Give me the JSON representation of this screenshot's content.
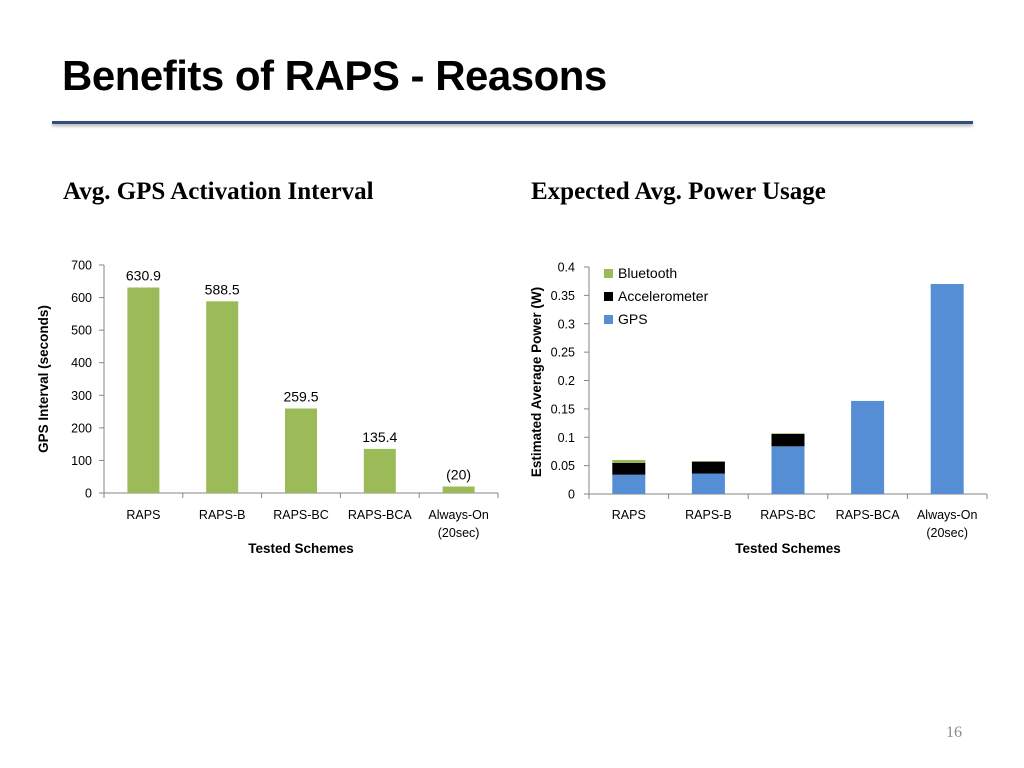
{
  "slide": {
    "title": "Benefits of RAPS - Reasons",
    "page_number": "16"
  },
  "colors": {
    "bar_green": "#9bbb59",
    "gps_blue": "#558ed5",
    "accelerometer_black": "#000000",
    "title_rule": "#2f4e7a"
  },
  "left_heading": "Avg. GPS Activation Interval",
  "right_heading": "Expected Avg. Power Usage",
  "chart_data": [
    {
      "type": "bar",
      "title": "Avg. GPS Activation Interval",
      "categories": [
        "RAPS",
        "RAPS-B",
        "RAPS-BC",
        "RAPS-BCA",
        "Always-On\n(20sec)"
      ],
      "values": [
        630.9,
        588.5,
        259.5,
        135.4,
        20
      ],
      "data_labels": [
        "630.9",
        "588.5",
        "259.5",
        "135.4",
        "(20)"
      ],
      "xlabel": "Tested Schemes",
      "ylabel": "GPS Interval (seconds)",
      "ylim": [
        0,
        700
      ],
      "yticks": [
        0,
        100,
        200,
        300,
        400,
        500,
        600,
        700
      ],
      "grid": false,
      "color": "#9bbb59"
    },
    {
      "type": "bar",
      "stacked": true,
      "title": "Expected Avg. Power Usage",
      "categories": [
        "RAPS",
        "RAPS-B",
        "RAPS-BC",
        "RAPS-BCA",
        "Always-On\n(20sec)"
      ],
      "series": [
        {
          "name": "GPS",
          "color": "#558ed5",
          "values": [
            0.034,
            0.036,
            0.084,
            0.164,
            0.37
          ]
        },
        {
          "name": "Accelerometer",
          "color": "#000000",
          "values": [
            0.021,
            0.021,
            0.022,
            0,
            0
          ]
        },
        {
          "name": "Bluetooth",
          "color": "#9bbb59",
          "values": [
            0.005,
            0.001,
            0.001,
            0,
            0
          ]
        }
      ],
      "legend_order": [
        "Bluetooth",
        "Accelerometer",
        "GPS"
      ],
      "legend_position": "top-left",
      "xlabel": "Tested Schemes",
      "ylabel": "Estimated Average Power (W)",
      "ylim": [
        0,
        0.4
      ],
      "yticks": [
        "0",
        "0.05",
        "0.1",
        "0.15",
        "0.2",
        "0.25",
        "0.3",
        "0.35",
        "0.4"
      ],
      "grid": false
    }
  ]
}
